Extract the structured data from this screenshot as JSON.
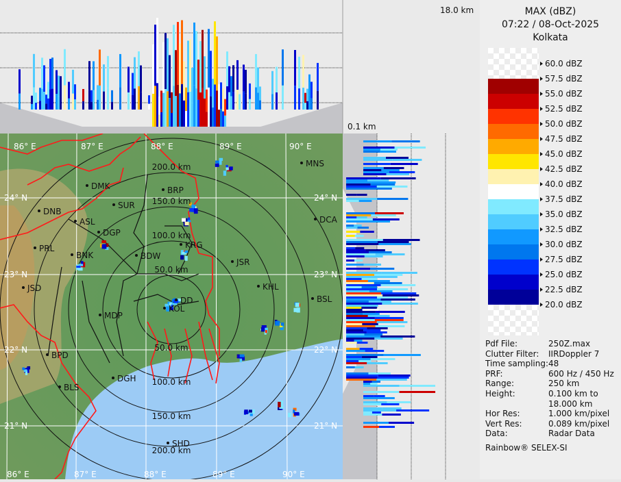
{
  "header": {
    "product": "MAX (dBZ)",
    "datetime": "07:22 / 08-Oct-2025",
    "station": "Kolkata"
  },
  "profile": {
    "top_height_label": "18.0 km",
    "bottom_height_label": "0.1 km"
  },
  "legend": {
    "entries": [
      {
        "label": "60.0 dBZ",
        "color": null
      },
      {
        "label": "57.5 dBZ",
        "color": "#a00000"
      },
      {
        "label": "55.0 dBZ",
        "color": "#cc0000"
      },
      {
        "label": "52.5 dBZ",
        "color": "#ff3300"
      },
      {
        "label": "50.0 dBZ",
        "color": "#ff6a00"
      },
      {
        "label": "47.5 dBZ",
        "color": "#ffaa00"
      },
      {
        "label": "45.0 dBZ",
        "color": "#ffe600"
      },
      {
        "label": "42.5 dBZ",
        "color": "#fff2b0"
      },
      {
        "label": "40.0 dBZ",
        "color": "#ffffff"
      },
      {
        "label": "37.5 dBZ",
        "color": "#80eaff"
      },
      {
        "label": "35.0 dBZ",
        "color": "#50ccff"
      },
      {
        "label": "32.5 dBZ",
        "color": "#1199ff"
      },
      {
        "label": "30.0 dBZ",
        "color": "#0077ee"
      },
      {
        "label": "27.5 dBZ",
        "color": "#0033ff"
      },
      {
        "label": "25.0 dBZ",
        "color": "#0000cc"
      },
      {
        "label": "22.5 dBZ",
        "color": "#000099"
      },
      {
        "label": "20.0 dBZ",
        "color": null
      }
    ]
  },
  "info": [
    {
      "key": "Pdf File:",
      "value": "250Z.max"
    },
    {
      "key": "Clutter Filter:",
      "value": "IIRDoppler 7"
    },
    {
      "key": "Time sampling:",
      "value": "48"
    },
    {
      "key": "PRF:",
      "value": "600 Hz / 450 Hz"
    },
    {
      "key": "Range:",
      "value": "250 km"
    },
    {
      "key": "Height:",
      "value": "0.100 km to"
    },
    {
      "key": "",
      "value": "18.000 km"
    },
    {
      "key": "Hor Res:",
      "value": "1.000 km/pixel"
    },
    {
      "key": "Vert Res:",
      "value": "0.089 km/pixel"
    },
    {
      "key": "Data:",
      "value": "Radar Data"
    }
  ],
  "credit": "Rainbow® SELEX-SI",
  "map": {
    "lon_labels_top": [
      "86° E",
      "87° E",
      "88° E",
      "89° E",
      "90° E"
    ],
    "lon_labels_bottom": [
      "86° E",
      "87° E",
      "88° E",
      "89° E",
      "90° E"
    ],
    "lat_labels": [
      "24° N",
      "23° N",
      "22° N",
      "21° N"
    ],
    "range_rings": [
      "50.0 km",
      "100.0 km",
      "150.0 km",
      "200.0 km"
    ],
    "cities": [
      "MNS",
      "DMK",
      "BRP",
      "SUR",
      "DNB",
      "ASL",
      "DGP",
      "DCA",
      "KRG",
      "PRL",
      "BNK",
      "BDW",
      "JSR",
      "KHL",
      "JSD",
      "DD",
      "BSL",
      "KOL",
      "MDP",
      "BPD",
      "DGH",
      "BLS",
      "SHD"
    ],
    "colors": {
      "land": "#5e9a5a",
      "sea": "#9ccbf5",
      "border": "#ff1a1a",
      "district": "#111111"
    }
  }
}
